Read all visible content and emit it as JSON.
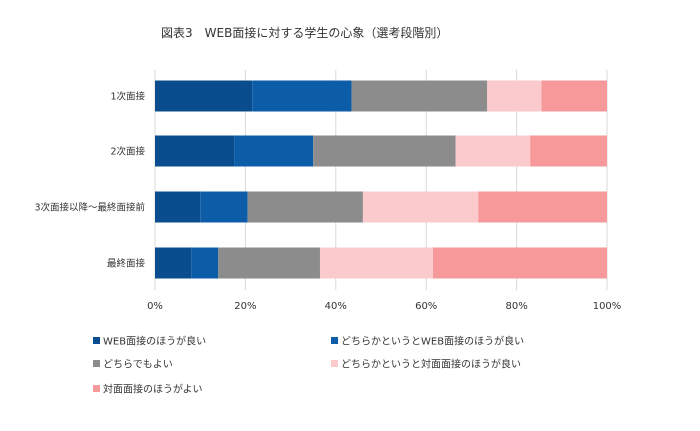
{
  "chart_data": {
    "type": "bar",
    "orientation": "horizontal",
    "stacked": true,
    "title": "図表3　WEB面接に対する学生の心象（選考段階別）",
    "categories": [
      "1次面接",
      "2次面接",
      "3次面接以降～最終面接前",
      "最終面接"
    ],
    "series": [
      {
        "name": "WEB面接のほうが良い",
        "color": "#0a4d8f",
        "values": [
          21.5,
          17.5,
          10.0,
          8.0
        ]
      },
      {
        "name": "どちらかというとWEB面接のほうが良い",
        "color": "#0d5ca8",
        "values": [
          22.0,
          17.5,
          10.5,
          6.0
        ]
      },
      {
        "name": "どちらでもよい",
        "color": "#8c8c8c",
        "values": [
          30.0,
          31.5,
          25.5,
          22.5
        ]
      },
      {
        "name": "どちらかというと対面面接のほうが良い",
        "color": "#fbcacc",
        "values": [
          12.0,
          16.5,
          25.5,
          25.0
        ]
      },
      {
        "name": "対面面接のほうがよい",
        "color": "#f6999b",
        "values": [
          14.5,
          17.0,
          28.5,
          38.5
        ]
      }
    ],
    "xlim": [
      0,
      100
    ],
    "xticks": [
      "0%",
      "20%",
      "40%",
      "60%",
      "80%",
      "100%"
    ],
    "grid": true,
    "legend_position": "bottom"
  }
}
